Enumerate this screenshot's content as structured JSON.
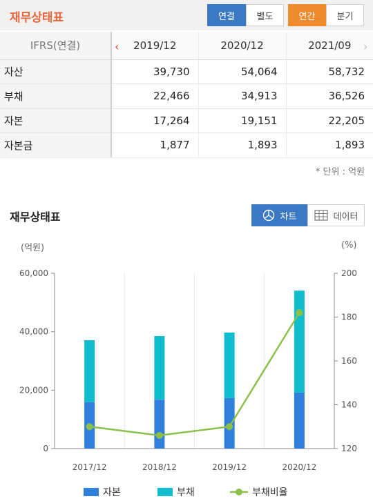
{
  "header": {
    "title": "재무상태표",
    "scope_tabs": [
      "연결",
      "별도"
    ],
    "period_tabs": [
      "연간",
      "분기"
    ]
  },
  "table": {
    "corner": "IFRS(연결)",
    "columns": [
      "2019/12",
      "2020/12",
      "2021/09"
    ],
    "rows": [
      {
        "label": "자산",
        "values": [
          "39,730",
          "54,064",
          "58,732"
        ]
      },
      {
        "label": "부채",
        "values": [
          "22,466",
          "34,913",
          "36,526"
        ]
      },
      {
        "label": "자본",
        "values": [
          "17,264",
          "19,151",
          "22,205"
        ]
      },
      {
        "label": "자본금",
        "values": [
          "1,877",
          "1,893",
          "1,893"
        ]
      }
    ],
    "unit_note": "* 단위 : 억원"
  },
  "chart_section": {
    "title": "재무상태표",
    "chart_button": "차트",
    "data_button": "데이터"
  },
  "colors": {
    "equity": "#2f7fdb",
    "liability": "#11bccc",
    "ratio": "#8cc04b"
  },
  "chart_data": {
    "type": "bar",
    "left_unit": "(억원)",
    "right_unit": "(%)",
    "categories": [
      "2017/12",
      "2018/12",
      "2019/12",
      "2020/12"
    ],
    "stacked": true,
    "ylim": [
      0,
      60000
    ],
    "yticks": [
      "0",
      "20,000",
      "40,000",
      "60,000"
    ],
    "y2lim": [
      120,
      200
    ],
    "y2ticks": [
      "120",
      "140",
      "160",
      "180",
      "200"
    ],
    "series": [
      {
        "name": "자본",
        "type": "bar",
        "axis": "left",
        "values": [
          15900,
          16700,
          17264,
          19151
        ]
      },
      {
        "name": "부채",
        "type": "bar",
        "axis": "left",
        "values": [
          21200,
          21800,
          22466,
          34913
        ]
      },
      {
        "name": "부채비율",
        "type": "line",
        "axis": "right",
        "values": [
          130.0,
          126.0,
          130.0,
          182.0
        ]
      }
    ],
    "legend_position": "bottom",
    "grid": "vertical"
  }
}
